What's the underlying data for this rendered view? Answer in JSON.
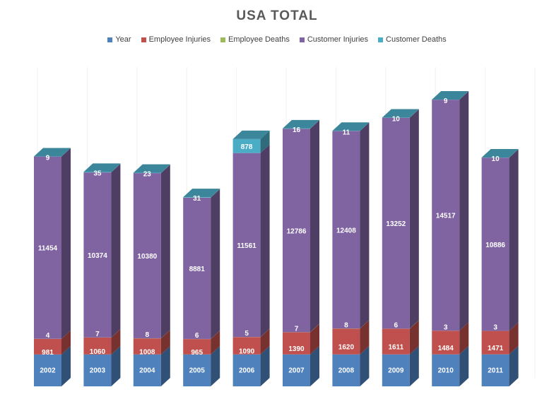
{
  "chart_data": {
    "type": "bar",
    "stacked": true,
    "three_d": true,
    "title": "USA TOTAL",
    "legend_position": "top",
    "grid": true,
    "categories": [
      "2002",
      "2003",
      "2004",
      "2005",
      "2006",
      "2007",
      "2008",
      "2009",
      "2010",
      "2011"
    ],
    "series": [
      {
        "name": "Year",
        "color": "#4f81bd",
        "values": [
          2002,
          2003,
          2004,
          2005,
          2006,
          2007,
          2008,
          2009,
          2010,
          2011
        ]
      },
      {
        "name": "Employee Injuries",
        "color": "#c0504d",
        "values": [
          981,
          1060,
          1008,
          965,
          1090,
          1390,
          1620,
          1611,
          1484,
          1471
        ]
      },
      {
        "name": "Employee Deaths",
        "color": "#9bbb59",
        "values": [
          4,
          7,
          8,
          6,
          5,
          7,
          8,
          6,
          3,
          3
        ]
      },
      {
        "name": "Customer Injuries",
        "color": "#8064a2",
        "values": [
          11454,
          10374,
          10380,
          8881,
          11561,
          12786,
          12408,
          13252,
          14517,
          10886
        ]
      },
      {
        "name": "Customer Deaths",
        "color": "#4bacc6",
        "values": [
          9,
          35,
          23,
          31,
          878,
          16,
          11,
          10,
          9,
          10
        ]
      }
    ]
  }
}
